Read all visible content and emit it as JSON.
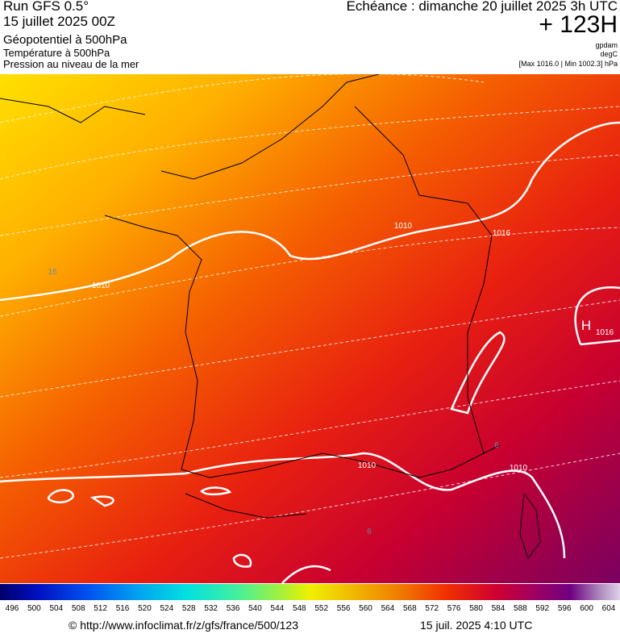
{
  "header": {
    "run": "Run GFS 0.5°",
    "date": "15 juillet 2025 00Z",
    "field": "Géopotentiel à 500hPa",
    "temperature": "Température à 500hPa",
    "pressure": "Pression au niveau de la mer",
    "echeance": "Echéance : dimanche 20 juillet 2025 3h UTC",
    "hour": "+ 123H",
    "unit_geo": "gpdam",
    "unit_temp": "degC",
    "maxmin": "[Max 1016.0 | Min 1002.3] hPa"
  },
  "map": {
    "labels": [
      "1010",
      "1010",
      "1010",
      "1010",
      "1016",
      "H",
      "1016",
      "16",
      "6",
      "6"
    ]
  },
  "legend": {
    "labels": [
      496,
      500,
      504,
      508,
      512,
      516,
      520,
      524,
      528,
      532,
      536,
      540,
      544,
      548,
      552,
      556,
      560,
      564,
      568,
      572,
      576,
      580,
      584,
      588,
      592,
      596,
      600,
      604
    ]
  },
  "footer": {
    "url": "© http://www.infoclimat.fr/z/gfs/france/500/123",
    "time": "15 juil. 2025  4:10 UTC"
  }
}
